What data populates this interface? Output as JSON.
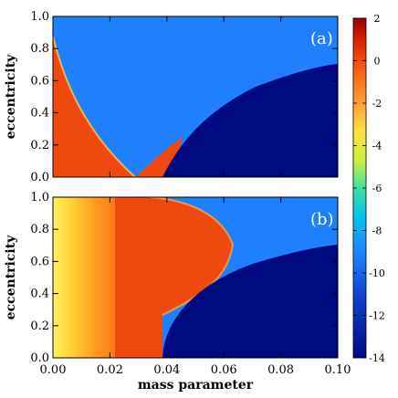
{
  "chart_data": [
    {
      "type": "heatmap",
      "panel_label": "(a)",
      "xlim": [
        0.0,
        0.1
      ],
      "ylim": [
        0.0,
        1.0
      ],
      "xticks": [
        "0.00",
        "0.02",
        "0.04",
        "0.06",
        "0.08",
        "0.10"
      ],
      "yticks": [
        "0.0",
        "0.2",
        "0.4",
        "0.6",
        "0.8",
        "1.0"
      ],
      "xlabel": "",
      "ylabel": "eccentricity",
      "regions": [
        {
          "value": -10,
          "color": "#1e7fff",
          "desc_region": "upper V region"
        },
        {
          "value": -14,
          "color": "#000a80",
          "desc_region": "lower right"
        },
        {
          "value": -1,
          "color": "#ee4a10",
          "desc_region": "left and center wedges"
        }
      ],
      "lower_boundary": {
        "x": [
          0.038,
          0.045,
          0.055,
          0.065,
          0.075,
          0.085,
          0.095,
          0.1
        ],
        "y": [
          0.0,
          0.18,
          0.33,
          0.44,
          0.54,
          0.62,
          0.69,
          0.72
        ]
      },
      "v_vertex": [
        0.029,
        0.0
      ]
    },
    {
      "type": "heatmap",
      "panel_label": "(b)",
      "xlim": [
        0.0,
        0.1
      ],
      "ylim": [
        0.0,
        1.0
      ],
      "xticks": [
        "0.00",
        "0.02",
        "0.04",
        "0.06",
        "0.08",
        "0.10"
      ],
      "yticks": [
        "0.0",
        "0.2",
        "0.4",
        "0.6",
        "0.8",
        "1.0"
      ],
      "xlabel": "mass parameter",
      "ylabel": "eccentricity",
      "regions": [
        {
          "value": -10,
          "color": "#1e7fff"
        },
        {
          "value": -14,
          "color": "#000a80"
        },
        {
          "value": -1,
          "color": "#ee4a10"
        },
        {
          "value": 2,
          "color": "#ffee40"
        }
      ],
      "orange_boundary": {
        "x": [
          0.0,
          0.02,
          0.04,
          0.055,
          0.062,
          0.058,
          0.048,
          0.04
        ],
        "y": [
          1.0,
          1.0,
          0.97,
          0.88,
          0.72,
          0.58,
          0.46,
          0.38
        ]
      }
    }
  ],
  "colorbar": {
    "min": -14,
    "max": 2,
    "ticks": [
      "2",
      "0",
      "-2",
      "-4",
      "-6",
      "-8",
      "-10",
      "-12",
      "-14"
    ],
    "tick_values": [
      2,
      0,
      -2,
      -4,
      -6,
      -8,
      -10,
      -12,
      -14
    ]
  }
}
